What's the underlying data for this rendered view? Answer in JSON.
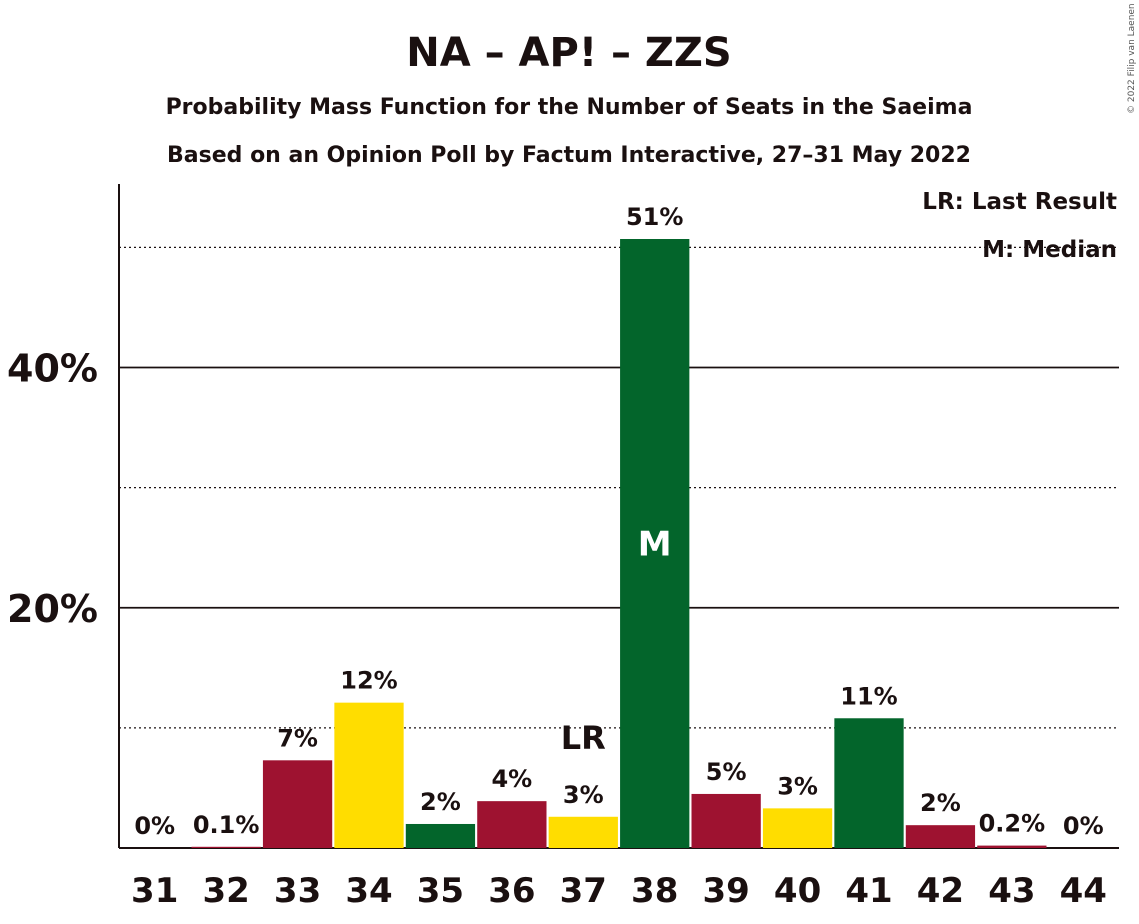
{
  "chart_data": {
    "type": "bar",
    "title": "NA – AP! – ZZS",
    "subtitle1": "Probability Mass Function for the Number of Seats in the Saeima",
    "subtitle2": "Based on an Opinion Poll by Factum Interactive, 27–31 May 2022",
    "copyright": "© 2022 Filip van Laenen",
    "legend": {
      "placement": "top-right",
      "lr": "LR: Last Result",
      "m": "M: Median"
    },
    "ylim": [
      0,
      55
    ],
    "yticks": [
      {
        "value": 20,
        "label": "20%"
      },
      {
        "value": 40,
        "label": "40%"
      }
    ],
    "minor_gridlines": [
      10,
      30,
      50
    ],
    "categories": [
      "31",
      "32",
      "33",
      "34",
      "35",
      "36",
      "37",
      "38",
      "39",
      "40",
      "41",
      "42",
      "43",
      "44"
    ],
    "values": [
      0,
      0.1,
      7.3,
      12.1,
      2.0,
      3.9,
      2.6,
      50.7,
      4.5,
      3.3,
      10.8,
      1.9,
      0.2,
      0
    ],
    "labels": [
      "0%",
      "0.1%",
      "7%",
      "12%",
      "2%",
      "4%",
      "3%",
      "51%",
      "5%",
      "3%",
      "11%",
      "2%",
      "0.2%",
      "0%"
    ],
    "colors": [
      "#9E1230",
      "#9E1230",
      "#9E1230",
      "#FFDD00",
      "#03652B",
      "#9E1230",
      "#FFDD00",
      "#03652B",
      "#9E1230",
      "#FFDD00",
      "#03652B",
      "#9E1230",
      "#9E1230",
      "#9E1230"
    ],
    "last_result": {
      "category": "37",
      "label": "LR"
    },
    "median": {
      "category": "38",
      "label": "M"
    },
    "grid": true
  }
}
